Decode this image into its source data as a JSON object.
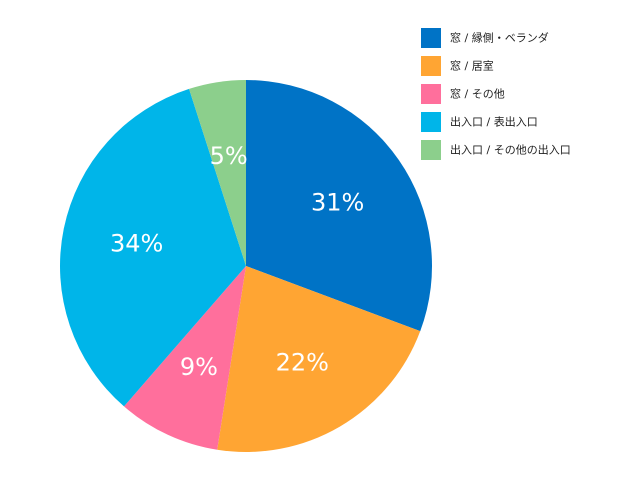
{
  "chart_data": {
    "type": "pie",
    "start_angle_deg": 0,
    "direction": "clockwise",
    "legend_position": "top-right",
    "categories": [
      "窓 / 縁側・ベランダ",
      "窓 / 居室",
      "窓 / その他",
      "出入口 / 表出入口",
      "出入口 / その他の出入口"
    ],
    "values": [
      31,
      22,
      9,
      34,
      5
    ],
    "labels": [
      "31%",
      "22%",
      "9%",
      "34%",
      "5%"
    ],
    "colors": [
      "#0073c6",
      "#ffa533",
      "#ff6f9c",
      "#00b5e9",
      "#8ccf8c"
    ]
  }
}
